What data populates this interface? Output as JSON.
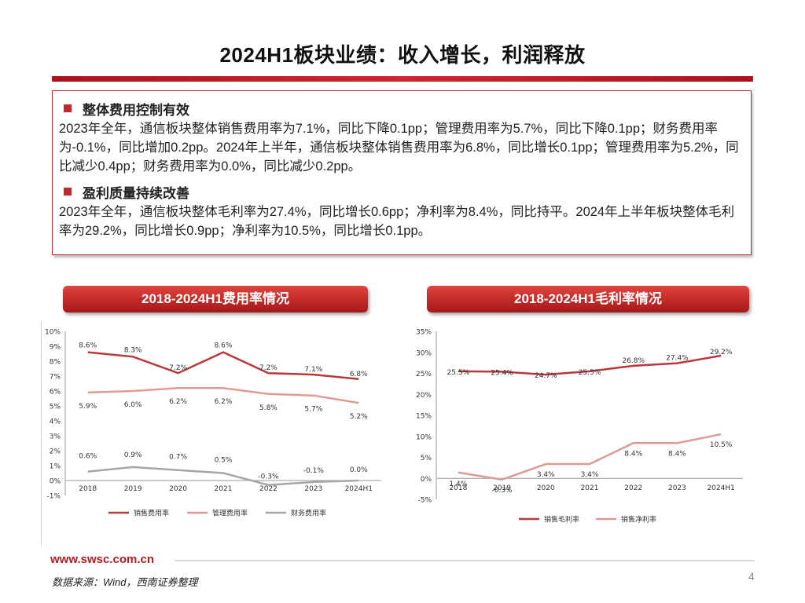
{
  "page": {
    "title": "2024H1板块业绩：收入增长，利润释放",
    "website": "www.swsc.com.cn",
    "source": "数据来源：Wind，西南证券整理",
    "page_number": "4"
  },
  "summary": {
    "sections": [
      {
        "heading": "整体费用控制有效",
        "text": "2023年全年，通信板块整体销售费用率为7.1%，同比下降0.1pp；管理费用率为5.7%，同比下降0.1pp；财务费用率为-0.1%，同比增加0.2pp。2024年上半年，通信板块整体销售费用率为6.8%，同比增长0.1pp；管理费用率为5.2%，同比减少0.4pp；财务费用率为0.0%，同比减少0.2pp。"
      },
      {
        "heading": "盈利质量持续改善",
        "text": "2023年全年，通信板块整体毛利率为27.4%，同比增长0.6pp；净利率为8.4%，同比持平。2024年上半年板块整体毛利率为29.2%，同比增长0.9pp；净利率为10.5%，同比增长0.1pp。"
      }
    ]
  },
  "colors": {
    "accent": "#c0282d",
    "series_dark": "#b9383b",
    "series_light": "#e09a94",
    "series_gray": "#a6a6a6"
  },
  "chart_data": [
    {
      "type": "line",
      "title": "2018-2024H1费用率情况",
      "categories": [
        "2018",
        "2019",
        "2020",
        "2021",
        "2022",
        "2023",
        "2024H1"
      ],
      "ylim": [
        -1,
        10
      ],
      "yticks": [
        -1,
        0,
        1,
        2,
        3,
        4,
        5,
        6,
        7,
        8,
        9,
        10
      ],
      "ytick_suffix": "%",
      "series": [
        {
          "name": "销售费用率",
          "values": [
            8.6,
            8.3,
            7.2,
            8.6,
            7.2,
            7.1,
            6.8
          ],
          "labels": [
            "8.6%",
            "8.3%",
            "7.2%",
            "8.6%",
            "7.2%",
            "7.1%",
            "6.8%"
          ]
        },
        {
          "name": "管理费用率",
          "values": [
            5.9,
            6.0,
            6.2,
            6.2,
            5.8,
            5.7,
            5.2
          ],
          "labels": [
            "5.9%",
            "6.0%",
            "6.2%",
            "6.2%",
            "5.8%",
            "5.7%",
            "5.2%"
          ]
        },
        {
          "name": "财务费用率",
          "values": [
            0.6,
            0.9,
            0.7,
            0.5,
            -0.3,
            -0.1,
            0.0
          ],
          "labels": [
            "0.6%",
            "0.9%",
            "0.7%",
            "0.5%",
            "-0.3%",
            "-0.1%",
            "0.0%"
          ]
        }
      ],
      "legend": "bottom"
    },
    {
      "type": "line",
      "title": "2018-2024H1毛利率情况",
      "categories": [
        "2018",
        "2019",
        "2020",
        "2021",
        "2022",
        "2023",
        "2024H1"
      ],
      "ylim": [
        -5,
        35
      ],
      "yticks": [
        -5,
        0,
        5,
        10,
        15,
        20,
        25,
        30,
        35
      ],
      "ytick_suffix": "%",
      "series": [
        {
          "name": "销售毛利率",
          "values": [
            25.5,
            25.4,
            24.7,
            25.5,
            26.8,
            27.4,
            29.2
          ],
          "labels": [
            "25.5%",
            "25.4%",
            "24.7%",
            "25.5%",
            "26.8%",
            "27.4%",
            "29.2%"
          ]
        },
        {
          "name": "销售净利率",
          "values": [
            1.4,
            -0.3,
            3.4,
            3.4,
            8.4,
            8.4,
            10.5
          ],
          "labels": [
            "1.4%",
            "-0.3%",
            "3.4%",
            "3.4%",
            "8.4%",
            "8.4%",
            "10.5%"
          ]
        }
      ],
      "legend": "bottom"
    }
  ]
}
